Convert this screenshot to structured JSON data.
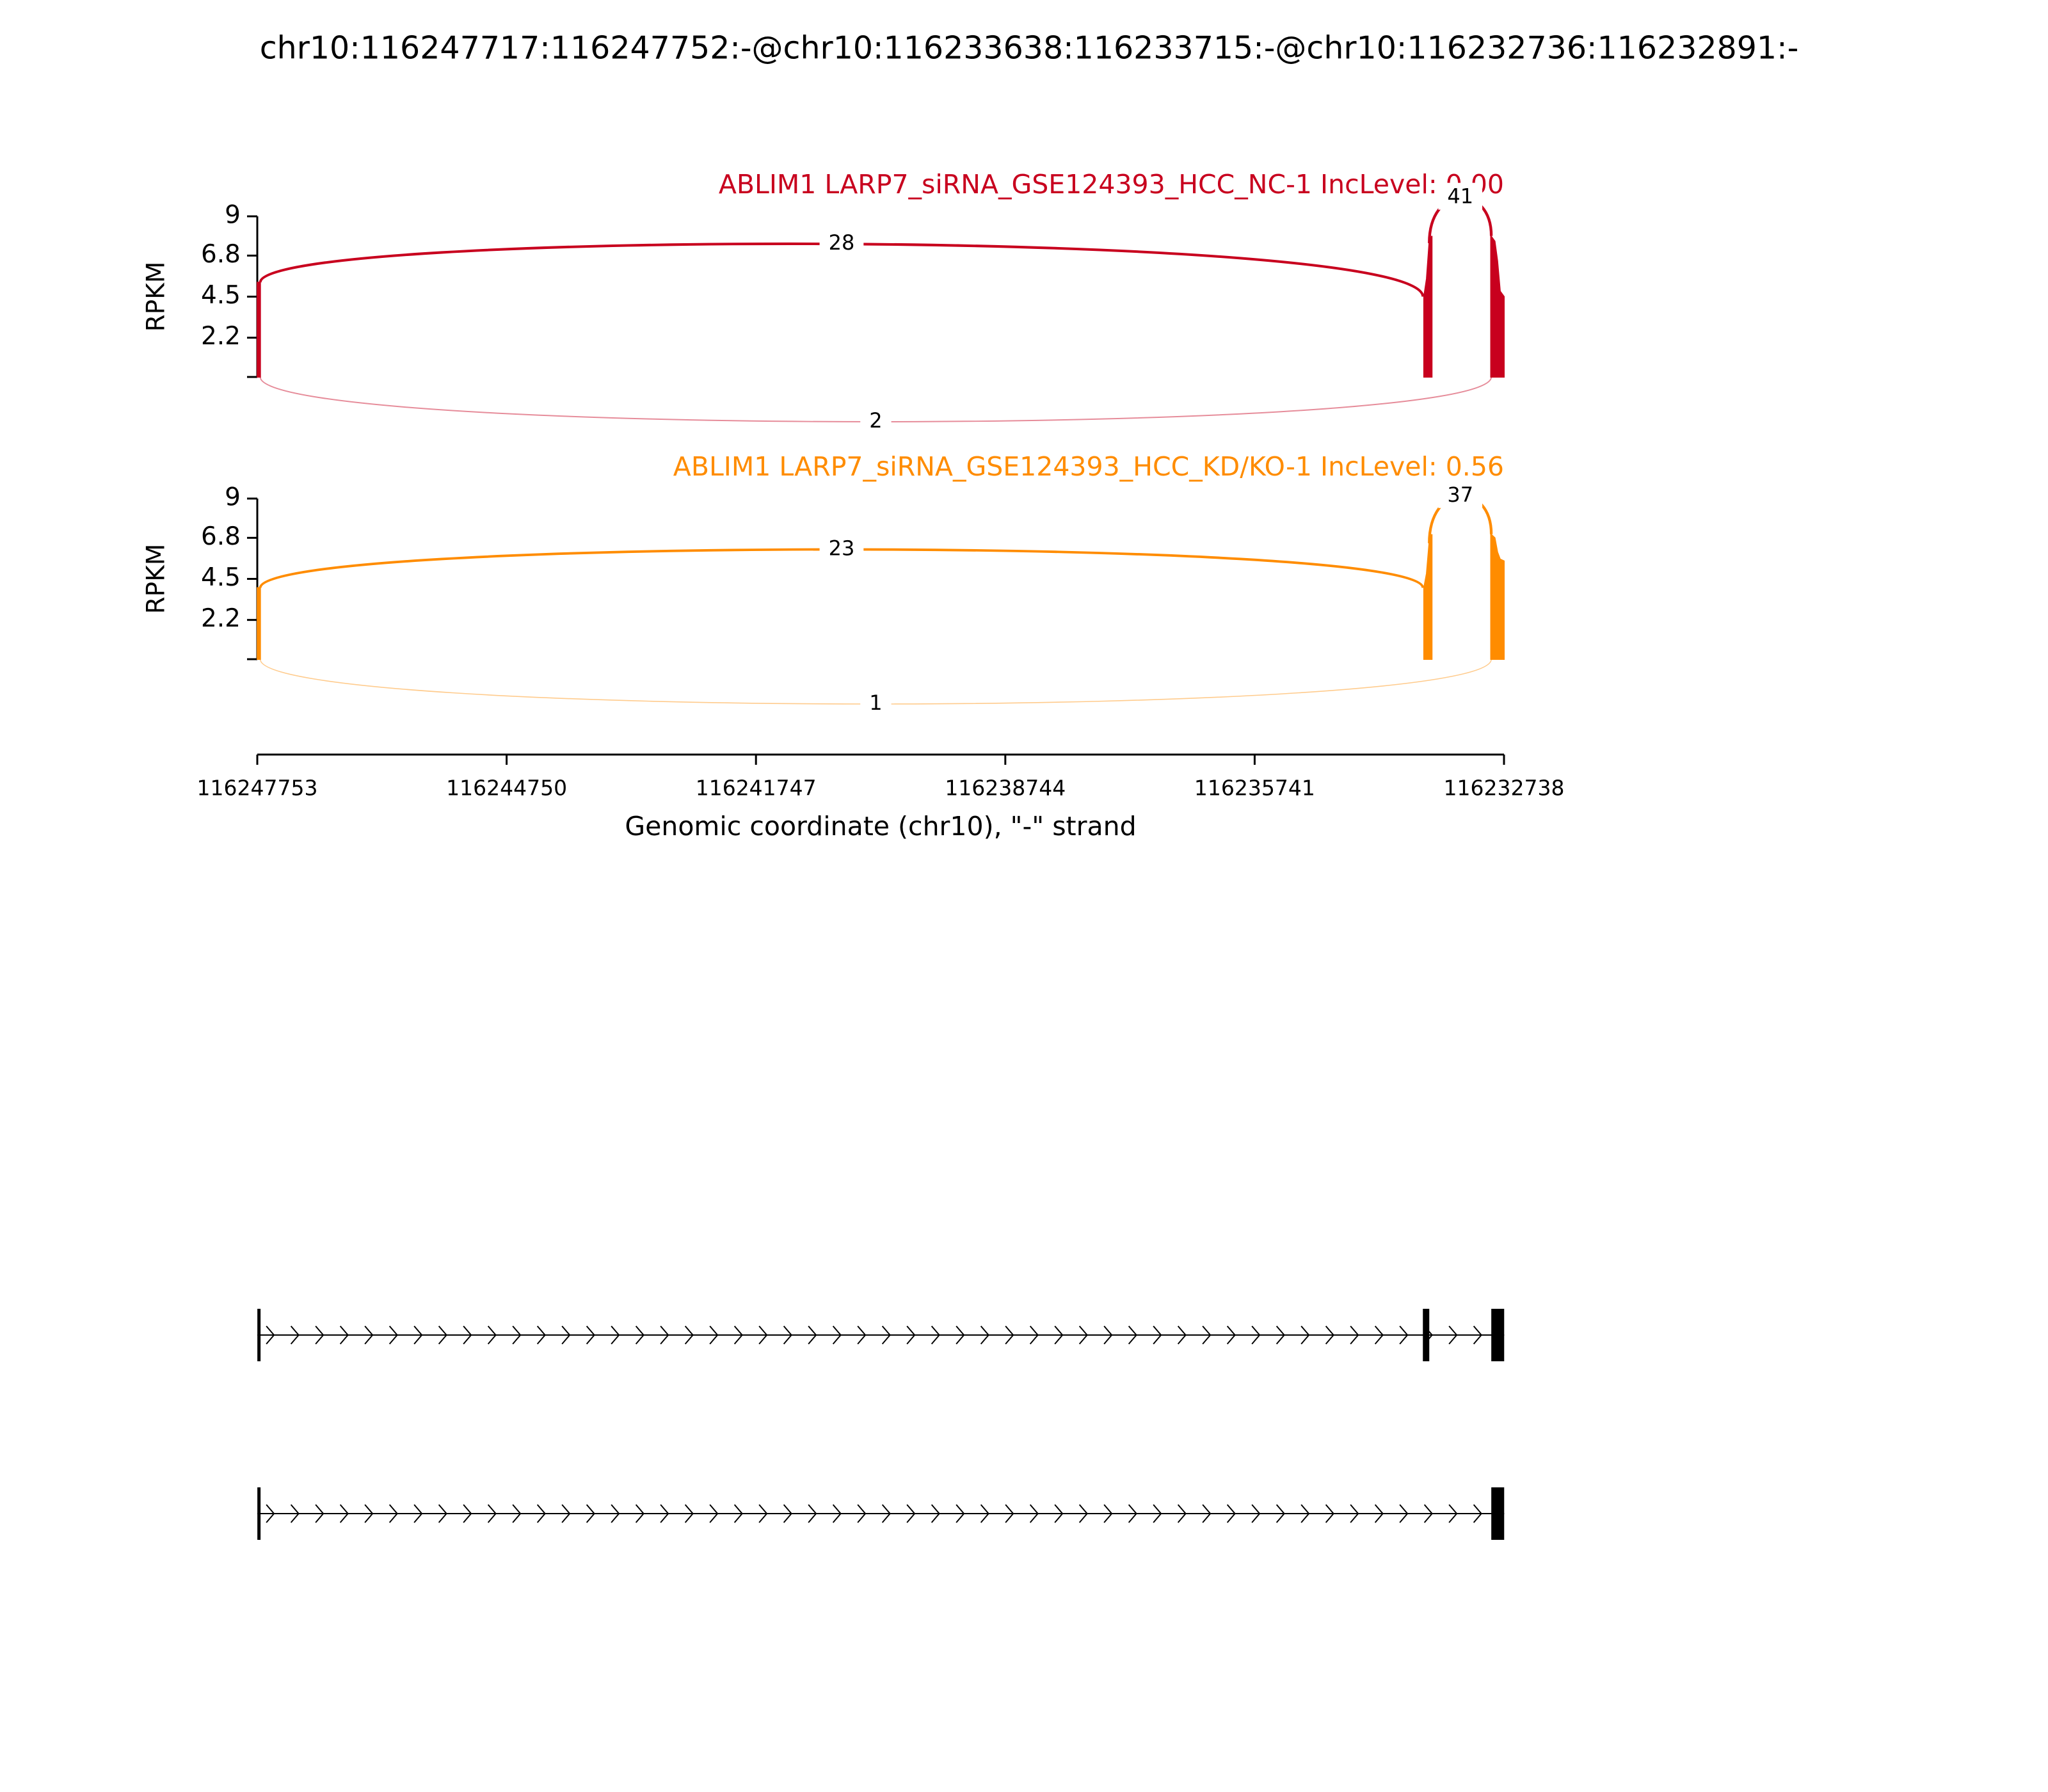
{
  "title": "chr10:116247717:116247752:-@chr10:116233638:116233715:-@chr10:116232736:116232891:-",
  "chart_data": [
    {
      "type": "sashimi",
      "title": "ABLIM1 LARP7_siRNA_GSE124393_HCC_NC-1 IncLevel: 0.00",
      "color": "#c8001e",
      "y_label": "RPKM",
      "ylim": [
        0,
        9
      ],
      "yticks": [
        2.2,
        4.5,
        6.8,
        9
      ],
      "xlim": [
        116247753,
        116232738
      ],
      "x": [
        116247752,
        116247717,
        null,
        116233702,
        116233670,
        116233639,
        116233607,
        null,
        116232896,
        116232849,
        116232817,
        116232785,
        116232738
      ],
      "values": [
        5.3,
        5.3,
        null,
        4.5,
        5.5,
        7.5,
        7.9,
        null,
        7.9,
        7.6,
        6.5,
        4.8,
        4.5
      ],
      "junctions": [
        {
          "start": 116247717,
          "end": 116233715,
          "count": 28
        },
        {
          "start": 116233638,
          "end": 116232891,
          "count": 41
        },
        {
          "start": 116247717,
          "end": 116232891,
          "count": 2
        }
      ]
    },
    {
      "type": "sashimi",
      "title": "ABLIM1 LARP7_siRNA_GSE124393_HCC_KD/KO-1 IncLevel: 0.56",
      "color": "#ff8c00",
      "y_label": "RPKM",
      "ylim": [
        0,
        9
      ],
      "yticks": [
        2.2,
        4.5,
        6.8,
        9
      ],
      "xlim": [
        116247753,
        116232738
      ],
      "x": [
        116247752,
        116247717,
        null,
        116233702,
        116233670,
        116233639,
        116233607,
        null,
        116232896,
        116232849,
        116232817,
        116232785,
        116232738
      ],
      "values": [
        4.0,
        4.0,
        null,
        4.0,
        4.8,
        6.5,
        7.0,
        null,
        7.0,
        6.8,
        6.0,
        5.6,
        5.5
      ],
      "junctions": [
        {
          "start": 116247717,
          "end": 116233715,
          "count": 23
        },
        {
          "start": 116233638,
          "end": 116232891,
          "count": 37
        },
        {
          "start": 116247717,
          "end": 116232891,
          "count": 1
        }
      ],
      "xticks": [
        116247753,
        116244750,
        116241747,
        116238744,
        116235741,
        116232738
      ],
      "x_label": "Genomic coordinate (chr10), \"-\" strand"
    }
  ],
  "transcripts": [
    {
      "exons": [
        [
          116247717,
          116247752
        ],
        [
          116233638,
          116233715
        ],
        [
          116232736,
          116232891
        ]
      ]
    },
    {
      "exons": [
        [
          116247717,
          116247752
        ],
        [
          116232736,
          116232891
        ]
      ]
    }
  ]
}
